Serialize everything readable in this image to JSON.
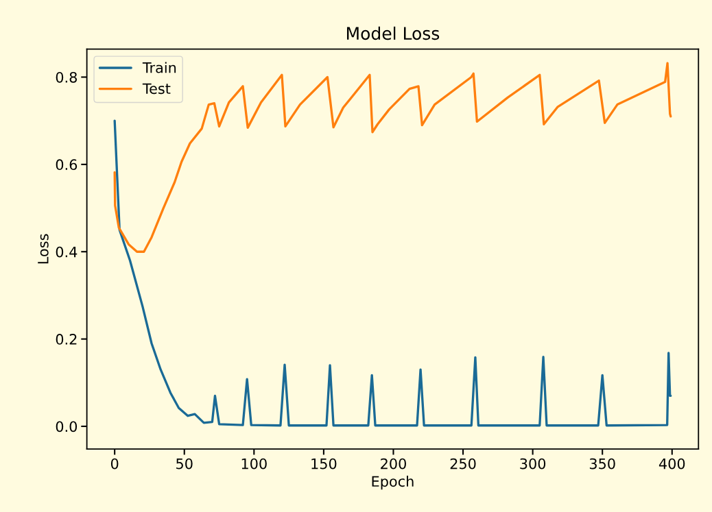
{
  "chart_data": {
    "type": "line",
    "title": "Model Loss",
    "xlabel": "Epoch",
    "ylabel": "Loss",
    "xlim": [
      -19.95,
      418.95
    ],
    "ylim": [
      -0.052,
      0.864
    ],
    "xticks": [
      0,
      50,
      100,
      150,
      200,
      250,
      300,
      350,
      400
    ],
    "yticks": [
      {
        "value": 0,
        "label": "0.0"
      },
      {
        "value": 0.2,
        "label": "0.2"
      },
      {
        "value": 0.4,
        "label": "0.4"
      },
      {
        "value": 0.6,
        "label": "0.6"
      },
      {
        "value": 0.8,
        "label": "0.8"
      }
    ],
    "grid": false,
    "legend": "top left",
    "marker": "none",
    "line_style": "solid",
    "series": [
      {
        "name": "Train",
        "color": "#1a6a96",
        "x": [
          0,
          3.5,
          11,
          20,
          26.5,
          33,
          40,
          46,
          52.5,
          57.5,
          64,
          70,
          72,
          75,
          92,
          95,
          98,
          119,
          122,
          125,
          152,
          154.5,
          157,
          182,
          184.6,
          187,
          217,
          219.5,
          222,
          256,
          258.8,
          261,
          305,
          307.6,
          310,
          347,
          350,
          353,
          396.5,
          397.5,
          398.5,
          399
        ],
        "values": [
          0.7,
          0.45,
          0.38,
          0.275,
          0.19,
          0.13,
          0.077,
          0.042,
          0.024,
          0.028,
          0.008,
          0.01,
          0.07,
          0.005,
          0.003,
          0.108,
          0.003,
          0.002,
          0.141,
          0.002,
          0.002,
          0.14,
          0.002,
          0.002,
          0.117,
          0.002,
          0.002,
          0.13,
          0.002,
          0.002,
          0.158,
          0.002,
          0.002,
          0.159,
          0.002,
          0.002,
          0.117,
          0.002,
          0.003,
          0.168,
          0.07,
          0.07
        ]
      },
      {
        "name": "Test",
        "color": "#ff7f0e",
        "x": [
          0,
          0.3,
          3,
          10,
          16,
          21,
          26.5,
          35,
          43,
          48,
          54,
          62.5,
          67.5,
          71.5,
          75,
          82,
          92,
          95.5,
          105,
          120,
          122.5,
          133,
          152.7,
          157,
          164,
          183,
          185,
          188.7,
          197,
          211.6,
          218,
          220.6,
          229.6,
          255.9,
          257.5,
          260,
          282,
          305,
          308,
          318,
          347.5,
          351.7,
          360.7,
          388.5,
          395,
          396.7,
          398.5,
          399
        ],
        "values": [
          0.582,
          0.506,
          0.455,
          0.417,
          0.4,
          0.4,
          0.433,
          0.5,
          0.559,
          0.606,
          0.648,
          0.682,
          0.737,
          0.74,
          0.687,
          0.742,
          0.779,
          0.684,
          0.742,
          0.805,
          0.687,
          0.737,
          0.8,
          0.685,
          0.73,
          0.805,
          0.674,
          0.692,
          0.726,
          0.773,
          0.779,
          0.69,
          0.737,
          0.8,
          0.808,
          0.698,
          0.753,
          0.805,
          0.692,
          0.732,
          0.792,
          0.695,
          0.737,
          0.779,
          0.789,
          0.832,
          0.716,
          0.71
        ]
      }
    ]
  }
}
